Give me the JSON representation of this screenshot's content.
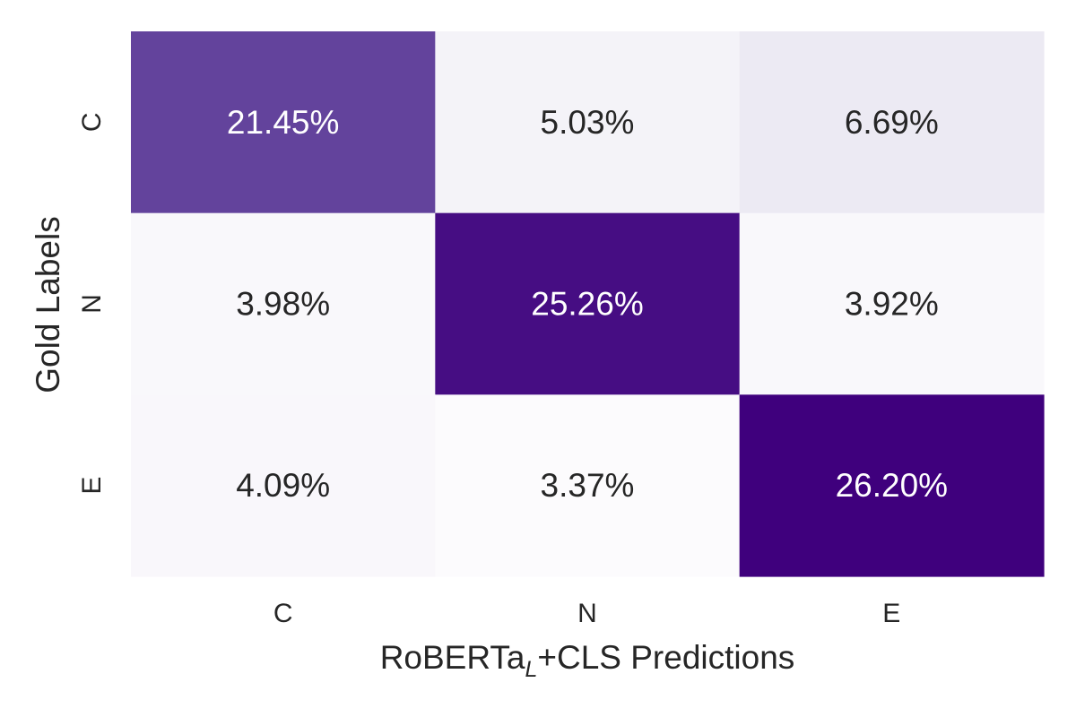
{
  "chart_data": {
    "type": "heatmap",
    "x_categories": [
      "C",
      "N",
      "E"
    ],
    "y_categories": [
      "C",
      "N",
      "E"
    ],
    "values": [
      [
        21.45,
        5.03,
        6.69
      ],
      [
        3.98,
        25.26,
        3.92
      ],
      [
        4.09,
        3.37,
        26.2
      ]
    ],
    "cell_labels": [
      [
        "21.45%",
        "5.03%",
        "6.69%"
      ],
      [
        "3.98%",
        "25.26%",
        "3.92%"
      ],
      [
        "4.09%",
        "3.37%",
        "26.20%"
      ]
    ],
    "xlabel": {
      "main": "RoBERTa",
      "subscript": "L",
      "rest": "+CLS Predictions"
    },
    "ylabel": "Gold Labels",
    "colormap": "Purples",
    "colormap_low": "#fcfbfd",
    "colormap_high": "#3f007d",
    "colorbar": false,
    "grid": false
  }
}
